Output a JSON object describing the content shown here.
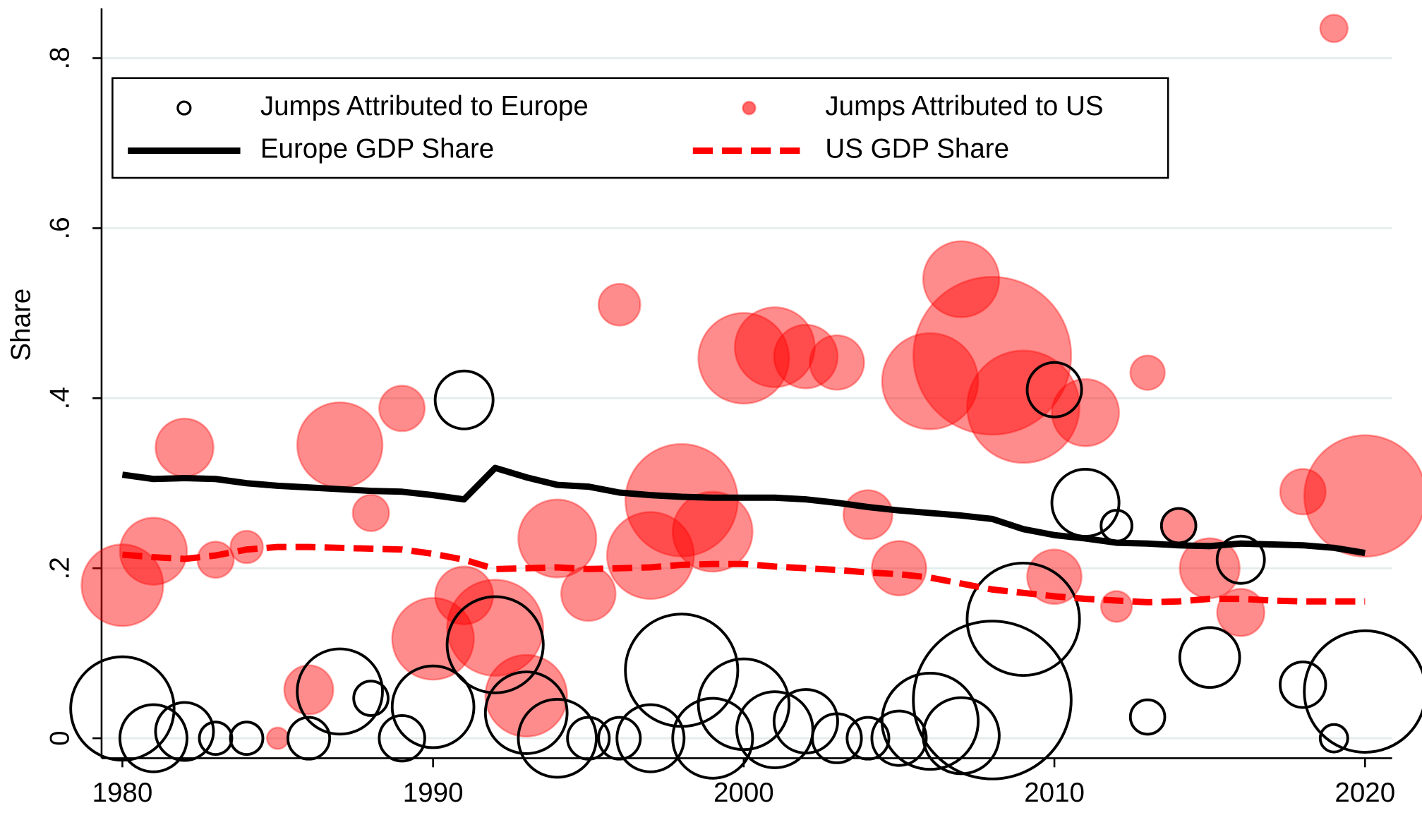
{
  "chart_data": {
    "type": "scatter",
    "y_label": "Share",
    "xlim": [
      1979.33,
      2020.87
    ],
    "ylim": [
      -0.0235,
      0.8587
    ],
    "xticks": [
      1980,
      1990,
      2000,
      2010,
      2020
    ],
    "yticks": [
      0,
      {
        "value": 0.2,
        "label": ".2"
      },
      {
        "value": 0.4,
        "label": ".4"
      },
      {
        "value": 0.6,
        "label": ".6"
      },
      {
        "value": 0.8,
        "label": ".8"
      }
    ],
    "grid": true,
    "series": [
      {
        "name": "Jumps Attributed to US",
        "type": "bubble",
        "color": "#ff0000",
        "x": [
          1980,
          1981,
          1982,
          1983,
          1984,
          1985,
          1986,
          1987,
          1988,
          1989,
          1990,
          1991,
          1992,
          1993,
          1994,
          1995,
          1996,
          1997,
          1998,
          1999,
          2000,
          2001,
          2002,
          2003,
          2004,
          2005,
          2006,
          2007,
          2008,
          2009,
          2010,
          2011,
          2012,
          2013,
          2014,
          2015,
          2016,
          2018,
          2019,
          2020
        ],
        "values": [
          0.18,
          0.22,
          0.342,
          0.21,
          0.225,
          0,
          0.057,
          0.345,
          0.265,
          0.388,
          0.117,
          0.168,
          0.13,
          0.05,
          0.235,
          0.17,
          0.51,
          0.215,
          0.28,
          0.243,
          0.447,
          0.46,
          0.449,
          0.442,
          0.263,
          0.2,
          0.42,
          0.54,
          0.45,
          0.39,
          0.19,
          0.383,
          0.155,
          0.43,
          0.25,
          0.2,
          0.148,
          0.29,
          0.835,
          0.285
        ],
        "sizes": [
          20.3,
          13.7,
          10.2,
          4,
          3.2,
          1.4,
          7.3,
          22.1,
          4,
          6.3,
          20.3,
          10.2,
          28.1,
          20.3,
          18.5,
          9,
          5.3,
          23,
          38.4,
          19.4,
          25,
          19.4,
          12.3,
          9,
          7.3,
          9,
          28.1,
          17.6,
          75.7,
          38.4,
          9,
          13.7,
          2.9,
          3.6,
          3.6,
          10.9,
          6.8,
          6.3,
          2.3,
          44.9
        ]
      },
      {
        "name": "Jumps Attributed to Europe",
        "type": "bubble",
        "color": "#000000",
        "x": [
          1980,
          1981,
          1982,
          1983,
          1984,
          1986,
          1987,
          1988,
          1989,
          1990,
          1991,
          1992,
          1993,
          1994,
          1995,
          1996,
          1997,
          1998,
          1999,
          2000,
          2001,
          2002,
          2003,
          2004,
          2005,
          2006,
          2007,
          2008,
          2009,
          2010,
          2011,
          2012,
          2013,
          2014,
          2015,
          2016,
          2018,
          2019,
          2020
        ],
        "values": [
          0.035,
          0,
          0.008,
          0,
          0,
          0,
          0.055,
          0.047,
          0,
          0.037,
          0.398,
          0.11,
          0.03,
          0,
          0,
          0,
          0,
          0.08,
          0,
          0.04,
          0.01,
          0.02,
          0,
          0,
          0,
          0.02,
          0.003,
          0.045,
          0.14,
          0.41,
          0.277,
          0.25,
          0.025,
          0.25,
          0.095,
          0.21,
          0.063,
          0,
          0.055
        ],
        "sizes": [
          32.5,
          13.7,
          10.2,
          3.2,
          3.2,
          5.3,
          22.1,
          3.6,
          6.3,
          20.3,
          10.2,
          28.1,
          20.3,
          18.5,
          5.3,
          5.3,
          13.7,
          38.4,
          19.4,
          25,
          17.6,
          12.3,
          7.3,
          5.3,
          9,
          28.1,
          17.6,
          75.7,
          38.4,
          9,
          13.7,
          2.9,
          3.6,
          3.6,
          10.9,
          6.8,
          6.3,
          2.3,
          44.9
        ]
      },
      {
        "name": "Europe GDP Share",
        "type": "line",
        "color": "#000000",
        "dashed": false,
        "x": [
          1980,
          1981,
          1982,
          1983,
          1984,
          1985,
          1986,
          1987,
          1988,
          1989,
          1990,
          1991,
          1992,
          1993,
          1994,
          1995,
          1996,
          1997,
          1998,
          1999,
          2000,
          2001,
          2002,
          2003,
          2004,
          2005,
          2006,
          2007,
          2008,
          2009,
          2010,
          2011,
          2012,
          2013,
          2014,
          2015,
          2016,
          2017,
          2018,
          2019,
          2020
        ],
        "values": [
          0.31,
          0.305,
          0.306,
          0.305,
          0.3,
          0.297,
          0.295,
          0.293,
          0.291,
          0.29,
          0.286,
          0.281,
          0.318,
          0.307,
          0.298,
          0.296,
          0.289,
          0.286,
          0.284,
          0.283,
          0.283,
          0.283,
          0.281,
          0.277,
          0.272,
          0.268,
          0.265,
          0.262,
          0.258,
          0.246,
          0.239,
          0.235,
          0.23,
          0.229,
          0.227,
          0.226,
          0.229,
          0.228,
          0.227,
          0.224,
          0.218
        ]
      },
      {
        "name": "US GDP Share",
        "type": "line",
        "color": "#ff0000",
        "dashed": true,
        "x": [
          1980,
          1981,
          1982,
          1983,
          1984,
          1985,
          1986,
          1987,
          1988,
          1989,
          1990,
          1991,
          1992,
          1993,
          1994,
          1995,
          1996,
          1997,
          1998,
          1999,
          2000,
          2001,
          2002,
          2003,
          2004,
          2005,
          2006,
          2007,
          2008,
          2009,
          2010,
          2011,
          2012,
          2013,
          2014,
          2015,
          2016,
          2017,
          2018,
          2019,
          2020
        ],
        "values": [
          0.216,
          0.213,
          0.211,
          0.215,
          0.222,
          0.225,
          0.225,
          0.224,
          0.223,
          0.222,
          0.217,
          0.21,
          0.199,
          0.2,
          0.201,
          0.199,
          0.2,
          0.201,
          0.204,
          0.205,
          0.205,
          0.202,
          0.2,
          0.198,
          0.195,
          0.193,
          0.189,
          0.182,
          0.175,
          0.171,
          0.167,
          0.164,
          0.162,
          0.16,
          0.161,
          0.164,
          0.164,
          0.162,
          0.161,
          0.161,
          0.161
        ]
      }
    ]
  }
}
